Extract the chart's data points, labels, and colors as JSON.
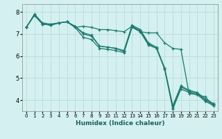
{
  "xlabel": "Humidex (Indice chaleur)",
  "bg_color": "#d4f0f0",
  "grid_color": "#b8e0e0",
  "line_color": "#1a7a6e",
  "xlim": [
    -0.5,
    23.5
  ],
  "ylim": [
    3.5,
    8.35
  ],
  "xticks": [
    0,
    1,
    2,
    3,
    4,
    5,
    6,
    7,
    8,
    9,
    10,
    11,
    12,
    13,
    14,
    15,
    16,
    17,
    18,
    19,
    20,
    21,
    22,
    23
  ],
  "yticks": [
    4,
    5,
    6,
    7,
    8
  ],
  "lines": [
    {
      "x": [
        0,
        1,
        2,
        3,
        4,
        5,
        6,
        7,
        8,
        9,
        10,
        11,
        12,
        13,
        14,
        15,
        16,
        17,
        18,
        19,
        20,
        21,
        22,
        23
      ],
      "y": [
        7.3,
        7.9,
        7.5,
        7.45,
        7.5,
        7.55,
        7.3,
        7.35,
        7.3,
        7.2,
        7.2,
        7.15,
        7.1,
        7.35,
        7.1,
        7.05,
        7.05,
        6.6,
        6.35,
        6.3,
        4.3,
        4.25,
        4.15,
        3.75
      ]
    },
    {
      "x": [
        0,
        1,
        2,
        3,
        4,
        5,
        6,
        7,
        8,
        9,
        10,
        11,
        12,
        13,
        14,
        15,
        16,
        17,
        18,
        19,
        20,
        21,
        22,
        23
      ],
      "y": [
        7.3,
        7.85,
        7.45,
        7.4,
        7.5,
        7.55,
        7.3,
        6.85,
        6.75,
        6.35,
        6.3,
        6.25,
        6.15,
        7.3,
        7.1,
        6.5,
        6.35,
        5.4,
        3.6,
        4.5,
        4.35,
        4.25,
        3.95,
        3.75
      ]
    },
    {
      "x": [
        0,
        1,
        2,
        3,
        4,
        5,
        6,
        7,
        8,
        9,
        10,
        11,
        12,
        13,
        14,
        15,
        16,
        17,
        18,
        19,
        20,
        21,
        22,
        23
      ],
      "y": [
        7.3,
        7.85,
        7.45,
        7.4,
        7.5,
        7.55,
        7.35,
        7.0,
        6.9,
        6.45,
        6.4,
        6.35,
        6.2,
        7.35,
        7.15,
        6.55,
        6.35,
        5.45,
        3.65,
        4.6,
        4.4,
        4.3,
        4.0,
        3.8
      ]
    },
    {
      "x": [
        0,
        1,
        2,
        3,
        4,
        5,
        6,
        7,
        8,
        9,
        10,
        11,
        12,
        13,
        14,
        15,
        16,
        17,
        18,
        19,
        20,
        21,
        22,
        23
      ],
      "y": [
        7.3,
        7.85,
        7.45,
        7.4,
        7.5,
        7.55,
        7.35,
        7.05,
        6.95,
        6.45,
        6.4,
        6.35,
        6.25,
        7.4,
        7.2,
        6.6,
        6.4,
        5.45,
        3.75,
        4.65,
        4.45,
        4.35,
        4.05,
        3.85
      ]
    }
  ]
}
